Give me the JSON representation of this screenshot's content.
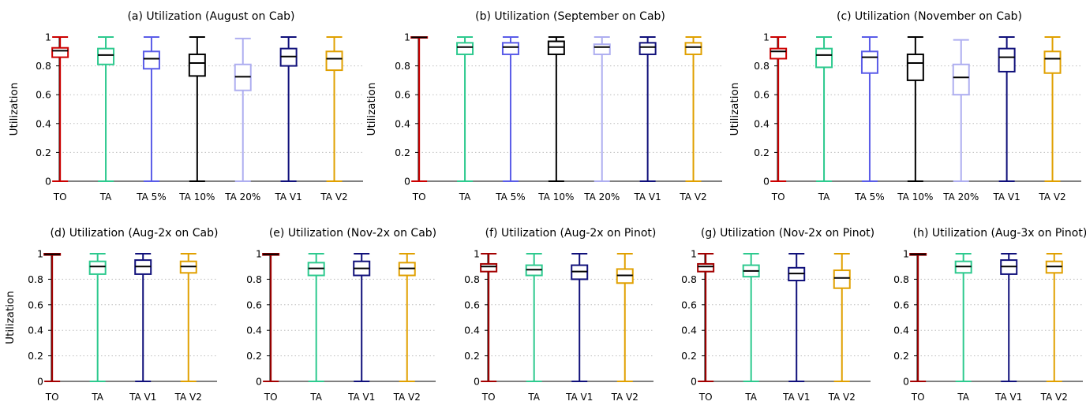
{
  "colors": {
    "TO": "#cc0000",
    "TA": "#2dc98e",
    "TA 5%": "#5a5ce8",
    "TA 10%": "#000000",
    "TA 20%": "#aeaef0",
    "TA V1": "#10107a",
    "TA V2": "#e0a000",
    "TO_dark": "#a30000"
  },
  "chart_data": [
    {
      "type": "box",
      "title": "(a) Utilization (August on Cab)",
      "ylabel": "Utilization",
      "ylim": [
        0,
        1
      ],
      "yticks": [
        "0",
        "0.2",
        "0.4",
        "0.6",
        "0.8",
        "1"
      ],
      "categories": [
        "TO",
        "TA",
        "TA 5%",
        "TA 10%",
        "TA 20%",
        "TA V1",
        "TA V2"
      ],
      "boxes": [
        {
          "min": 0,
          "q1": 0.86,
          "median": 0.905,
          "q3": 0.925,
          "max": 1
        },
        {
          "min": 0,
          "q1": 0.81,
          "median": 0.875,
          "q3": 0.92,
          "max": 1
        },
        {
          "min": 0,
          "q1": 0.78,
          "median": 0.85,
          "q3": 0.9,
          "max": 1
        },
        {
          "min": 0,
          "q1": 0.73,
          "median": 0.82,
          "q3": 0.88,
          "max": 1
        },
        {
          "min": 0,
          "q1": 0.63,
          "median": 0.725,
          "q3": 0.81,
          "max": 0.99
        },
        {
          "min": 0,
          "q1": 0.8,
          "median": 0.865,
          "q3": 0.92,
          "max": 1
        },
        {
          "min": 0,
          "q1": 0.77,
          "median": 0.85,
          "q3": 0.9,
          "max": 1
        }
      ]
    },
    {
      "type": "box",
      "title": "(b) Utilization (September on Cab)",
      "ylabel": "Utilization",
      "ylim": [
        0,
        1
      ],
      "yticks": [
        "0",
        "0.2",
        "0.4",
        "0.6",
        "0.8",
        "1"
      ],
      "categories": [
        "TO",
        "TA",
        "TA 5%",
        "TA 10%",
        "TA 20%",
        "TA V1",
        "TA V2"
      ],
      "boxes": [
        {
          "min": 0,
          "q1": 0.995,
          "median": 0.998,
          "q3": 1,
          "max": 1
        },
        {
          "min": 0,
          "q1": 0.88,
          "median": 0.93,
          "q3": 0.96,
          "max": 1
        },
        {
          "min": 0,
          "q1": 0.88,
          "median": 0.93,
          "q3": 0.96,
          "max": 1
        },
        {
          "min": 0,
          "q1": 0.88,
          "median": 0.93,
          "q3": 0.97,
          "max": 1
        },
        {
          "min": 0,
          "q1": 0.88,
          "median": 0.93,
          "q3": 0.95,
          "max": 1
        },
        {
          "min": 0,
          "q1": 0.88,
          "median": 0.93,
          "q3": 0.96,
          "max": 1
        },
        {
          "min": 0,
          "q1": 0.88,
          "median": 0.93,
          "q3": 0.96,
          "max": 1
        }
      ]
    },
    {
      "type": "box",
      "title": "(c) Utilization (November on Cab)",
      "ylabel": "Utilization",
      "ylim": [
        0,
        1
      ],
      "yticks": [
        "0",
        "0.2",
        "0.4",
        "0.6",
        "0.8",
        "1"
      ],
      "categories": [
        "TO",
        "TA",
        "TA 5%",
        "TA 10%",
        "TA 20%",
        "TA V1",
        "TA V2"
      ],
      "boxes": [
        {
          "min": 0,
          "q1": 0.85,
          "median": 0.9,
          "q3": 0.92,
          "max": 1
        },
        {
          "min": 0,
          "q1": 0.79,
          "median": 0.875,
          "q3": 0.92,
          "max": 1
        },
        {
          "min": 0,
          "q1": 0.75,
          "median": 0.86,
          "q3": 0.9,
          "max": 1
        },
        {
          "min": 0,
          "q1": 0.7,
          "median": 0.82,
          "q3": 0.88,
          "max": 1
        },
        {
          "min": 0,
          "q1": 0.6,
          "median": 0.72,
          "q3": 0.81,
          "max": 0.98
        },
        {
          "min": 0,
          "q1": 0.76,
          "median": 0.86,
          "q3": 0.92,
          "max": 1
        },
        {
          "min": 0,
          "q1": 0.75,
          "median": 0.85,
          "q3": 0.9,
          "max": 1
        }
      ]
    },
    {
      "type": "box",
      "title": "(d) Utilization (Aug-2x on Cab)",
      "ylabel": "Utilization",
      "ylim": [
        0,
        1
      ],
      "yticks": [
        "0",
        "0.2",
        "0.4",
        "0.6",
        "0.8",
        "1"
      ],
      "categories": [
        "TO",
        "TA",
        "TA V1",
        "TA V2"
      ],
      "boxes": [
        {
          "min": 0,
          "q1": 0.99,
          "median": 0.995,
          "q3": 1,
          "max": 1
        },
        {
          "min": 0,
          "q1": 0.84,
          "median": 0.9,
          "q3": 0.94,
          "max": 1
        },
        {
          "min": 0,
          "q1": 0.84,
          "median": 0.9,
          "q3": 0.95,
          "max": 1
        },
        {
          "min": 0,
          "q1": 0.85,
          "median": 0.9,
          "q3": 0.94,
          "max": 1
        }
      ]
    },
    {
      "type": "box",
      "title": "(e) Utilization (Nov-2x on Cab)",
      "ylabel": "",
      "ylim": [
        0,
        1
      ],
      "yticks": [
        "0",
        "0.2",
        "0.4",
        "0.6",
        "0.8",
        "1"
      ],
      "categories": [
        "TO",
        "TA",
        "TA V1",
        "TA V2"
      ],
      "boxes": [
        {
          "min": 0,
          "q1": 0.99,
          "median": 0.995,
          "q3": 1,
          "max": 1
        },
        {
          "min": 0,
          "q1": 0.83,
          "median": 0.885,
          "q3": 0.93,
          "max": 1
        },
        {
          "min": 0,
          "q1": 0.83,
          "median": 0.885,
          "q3": 0.94,
          "max": 1
        },
        {
          "min": 0,
          "q1": 0.83,
          "median": 0.885,
          "q3": 0.93,
          "max": 1
        }
      ]
    },
    {
      "type": "box",
      "title": "(f) Utilization (Aug-2x on Pinot)",
      "ylabel": "",
      "ylim": [
        0,
        1
      ],
      "yticks": [
        "0",
        "0.2",
        "0.4",
        "0.6",
        "0.8",
        "1"
      ],
      "categories": [
        "TO",
        "TA",
        "TA V1",
        "TA V2"
      ],
      "boxes": [
        {
          "min": 0,
          "q1": 0.86,
          "median": 0.9,
          "q3": 0.92,
          "max": 1
        },
        {
          "min": 0,
          "q1": 0.83,
          "median": 0.875,
          "q3": 0.91,
          "max": 1
        },
        {
          "min": 0,
          "q1": 0.8,
          "median": 0.86,
          "q3": 0.91,
          "max": 1
        },
        {
          "min": 0,
          "q1": 0.77,
          "median": 0.83,
          "q3": 0.88,
          "max": 1
        }
      ]
    },
    {
      "type": "box",
      "title": "(g) Utilization (Nov-2x on Pinot)",
      "ylabel": "",
      "ylim": [
        0,
        1
      ],
      "yticks": [
        "0",
        "0.2",
        "0.4",
        "0.6",
        "0.8",
        "1"
      ],
      "categories": [
        "TO",
        "TA",
        "TA V1",
        "TA V2"
      ],
      "boxes": [
        {
          "min": 0,
          "q1": 0.86,
          "median": 0.9,
          "q3": 0.92,
          "max": 1
        },
        {
          "min": 0,
          "q1": 0.82,
          "median": 0.865,
          "q3": 0.91,
          "max": 1
        },
        {
          "min": 0,
          "q1": 0.79,
          "median": 0.845,
          "q3": 0.89,
          "max": 1
        },
        {
          "min": 0,
          "q1": 0.73,
          "median": 0.81,
          "q3": 0.87,
          "max": 1
        }
      ]
    },
    {
      "type": "box",
      "title": "(h) Utilization (Aug-3x on Pinot)",
      "ylabel": "",
      "ylim": [
        0,
        1
      ],
      "yticks": [
        "0",
        "0.2",
        "0.4",
        "0.6",
        "0.8",
        "1"
      ],
      "categories": [
        "TO",
        "TA",
        "TA V1",
        "TA V2"
      ],
      "boxes": [
        {
          "min": 0,
          "q1": 0.99,
          "median": 0.995,
          "q3": 1,
          "max": 1
        },
        {
          "min": 0,
          "q1": 0.85,
          "median": 0.9,
          "q3": 0.94,
          "max": 1
        },
        {
          "min": 0,
          "q1": 0.84,
          "median": 0.9,
          "q3": 0.95,
          "max": 1
        },
        {
          "min": 0,
          "q1": 0.85,
          "median": 0.9,
          "q3": 0.94,
          "max": 1
        }
      ]
    }
  ]
}
